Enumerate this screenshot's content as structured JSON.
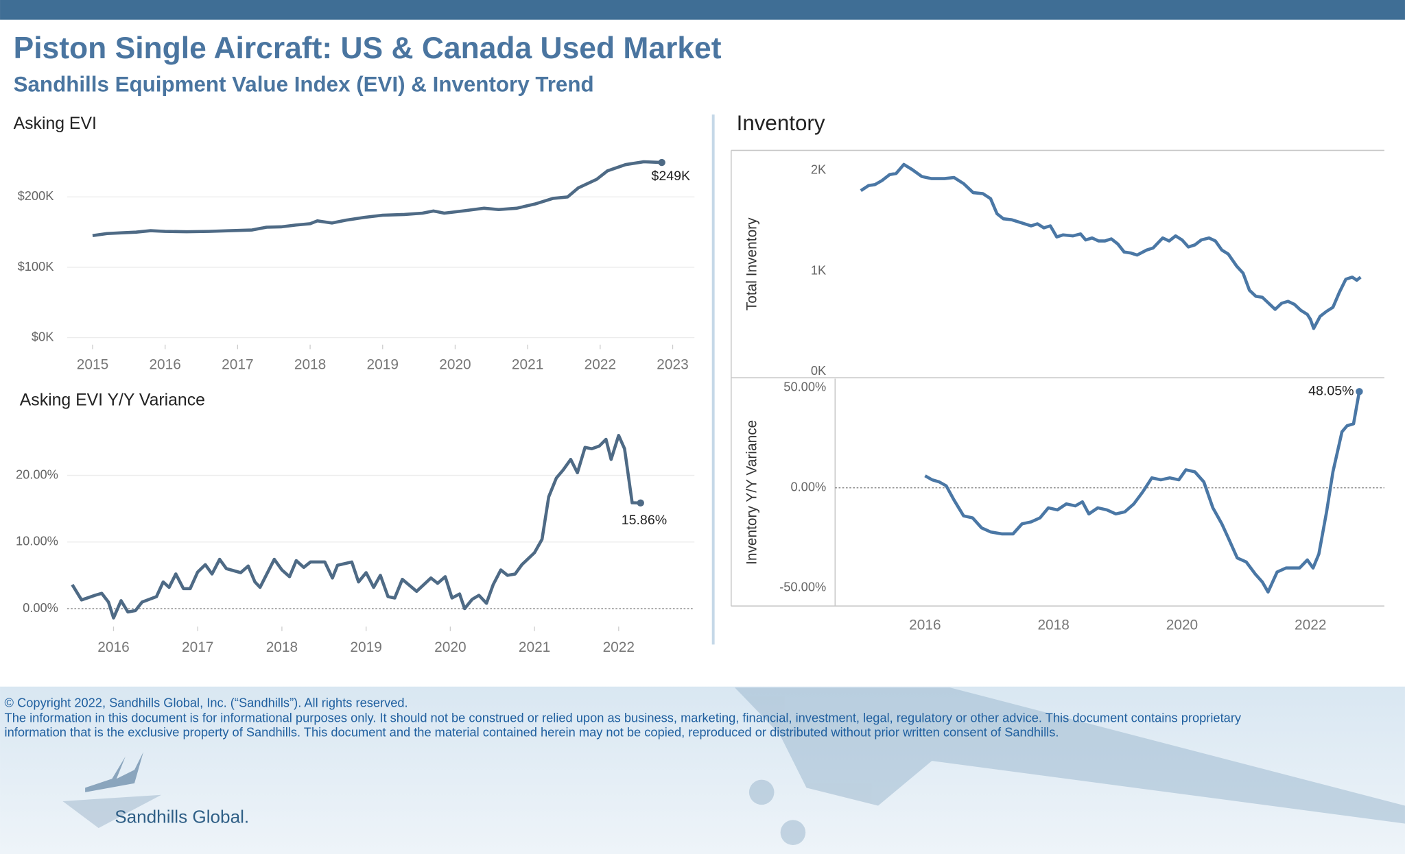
{
  "header": {
    "title": "Piston Single Aircraft:  US & Canada Used Market",
    "subtitle": "Sandhills Equipment Value Index (EVI) & Inventory Trend"
  },
  "chart_data": [
    {
      "type": "line",
      "title": "Asking EVI",
      "color": "#4e6a85",
      "grid": true,
      "zero_line": false,
      "x": [
        2015.0,
        2015.2,
        2015.4,
        2015.6,
        2015.8,
        2016.0,
        2016.3,
        2016.6,
        2016.9,
        2017.2,
        2017.4,
        2017.6,
        2017.8,
        2018.0,
        2018.1,
        2018.3,
        2018.5,
        2018.75,
        2019.0,
        2019.3,
        2019.55,
        2019.7,
        2019.85,
        2020.1,
        2020.4,
        2020.6,
        2020.85,
        2021.1,
        2021.35,
        2021.55,
        2021.7,
        2021.95,
        2022.1,
        2022.35,
        2022.6,
        2022.85
      ],
      "values": [
        145000,
        148000,
        149000,
        150000,
        152000,
        151000,
        150500,
        151000,
        152000,
        153000,
        157000,
        157500,
        160000,
        162000,
        166000,
        163000,
        167000,
        171000,
        174000,
        175000,
        177000,
        180000,
        177000,
        180000,
        184000,
        182000,
        184000,
        190000,
        198000,
        200000,
        213000,
        225000,
        237000,
        246000,
        250000,
        249000
      ],
      "value_labels": [
        null,
        null,
        null,
        null,
        null,
        null,
        null,
        null,
        null,
        null,
        null,
        null,
        null,
        null,
        null,
        null,
        null,
        null,
        null,
        null,
        null,
        null,
        null,
        null,
        null,
        null,
        null,
        null,
        null,
        null,
        null,
        null,
        null,
        null,
        null,
        "$249K"
      ],
      "xlim": [
        2014.65,
        2023.3
      ],
      "xticks": [
        2015,
        2016,
        2017,
        2018,
        2019,
        2020,
        2021,
        2022,
        2023
      ],
      "ylim": [
        -10000,
        270000
      ],
      "yticks": [
        {
          "value": 0,
          "label": "$0K"
        },
        {
          "value": 100000,
          "label": "$100K"
        },
        {
          "value": 200000,
          "label": "$200K"
        }
      ]
    },
    {
      "type": "line",
      "title": "Asking EVI Y/Y Variance",
      "color": "#4e6a85",
      "grid": true,
      "zero_line": true,
      "x": [
        2015.51,
        2015.62,
        2015.78,
        2015.86,
        2015.94,
        2016.0,
        2016.09,
        2016.17,
        2016.26,
        2016.34,
        2016.51,
        2016.59,
        2016.66,
        2016.74,
        2016.83,
        2016.91,
        2017.0,
        2017.09,
        2017.17,
        2017.26,
        2017.34,
        2017.51,
        2017.6,
        2017.68,
        2017.74,
        2017.91,
        2018.0,
        2018.09,
        2018.17,
        2018.26,
        2018.34,
        2018.51,
        2018.6,
        2018.66,
        2018.83,
        2018.91,
        2019.0,
        2019.09,
        2019.17,
        2019.26,
        2019.34,
        2019.43,
        2019.6,
        2019.77,
        2019.85,
        2019.94,
        2020.02,
        2020.11,
        2020.17,
        2020.26,
        2020.34,
        2020.43,
        2020.51,
        2020.6,
        2020.68,
        2020.77,
        2020.85,
        2021.0,
        2021.09,
        2021.17,
        2021.26,
        2021.34,
        2021.43,
        2021.51,
        2021.6,
        2021.68,
        2021.77,
        2021.85,
        2021.91,
        2022.0,
        2022.07,
        2022.16,
        2022.26
      ],
      "values": [
        3.6,
        1.3,
        2.0,
        2.3,
        1.0,
        -1.4,
        1.2,
        -0.5,
        -0.3,
        1.0,
        1.8,
        4.0,
        3.2,
        5.2,
        3.0,
        3.0,
        5.5,
        6.6,
        5.2,
        7.4,
        6.0,
        5.4,
        6.4,
        4.0,
        3.2,
        7.4,
        5.8,
        4.8,
        7.2,
        6.2,
        7.0,
        7.0,
        4.6,
        6.5,
        7.0,
        4.0,
        5.4,
        3.2,
        5.0,
        1.8,
        1.6,
        4.4,
        2.6,
        4.6,
        3.8,
        4.8,
        1.6,
        2.2,
        0.0,
        1.4,
        2.0,
        0.8,
        3.6,
        5.8,
        5.0,
        5.2,
        6.6,
        8.4,
        10.4,
        16.8,
        19.6,
        20.8,
        22.4,
        20.4,
        24.2,
        24.0,
        24.4,
        25.4,
        22.4,
        26.0,
        24.0,
        15.9,
        15.86
      ],
      "value_labels": [
        null,
        null,
        null,
        null,
        null,
        null,
        null,
        null,
        null,
        null,
        null,
        null,
        null,
        null,
        null,
        null,
        null,
        null,
        null,
        null,
        null,
        null,
        null,
        null,
        null,
        null,
        null,
        null,
        null,
        null,
        null,
        null,
        null,
        null,
        null,
        null,
        null,
        null,
        null,
        null,
        null,
        null,
        null,
        null,
        null,
        null,
        null,
        null,
        null,
        null,
        null,
        null,
        null,
        null,
        null,
        null,
        null,
        null,
        null,
        null,
        null,
        null,
        null,
        null,
        null,
        null,
        null,
        null,
        null,
        null,
        null,
        null,
        "15.86%"
      ],
      "xlim": [
        2015.45,
        2022.9
      ],
      "xticks": [
        2016,
        2017,
        2018,
        2019,
        2020,
        2021,
        2022
      ],
      "ylim": [
        -2.7,
        28.2
      ],
      "yticks": [
        {
          "value": 0,
          "label": "0.00%"
        },
        {
          "value": 10,
          "label": "10.00%"
        },
        {
          "value": 20,
          "label": "20.00%"
        }
      ]
    },
    {
      "type": "line",
      "title": "Inventory",
      "y_label": "Total Inventory",
      "color": "#4a77a5",
      "grid": false,
      "zero_line": false,
      "x": [
        2015.0,
        2015.12,
        2015.22,
        2015.33,
        2015.45,
        2015.55,
        2015.67,
        2015.8,
        2015.95,
        2016.1,
        2016.3,
        2016.45,
        2016.6,
        2016.75,
        2016.9,
        2017.02,
        2017.12,
        2017.22,
        2017.35,
        2017.5,
        2017.65,
        2017.75,
        2017.85,
        2017.95,
        2018.05,
        2018.15,
        2018.3,
        2018.42,
        2018.5,
        2018.6,
        2018.7,
        2018.8,
        2018.9,
        2019.0,
        2019.1,
        2019.2,
        2019.3,
        2019.45,
        2019.55,
        2019.7,
        2019.8,
        2019.9,
        2020.0,
        2020.1,
        2020.2,
        2020.3,
        2020.42,
        2020.52,
        2020.62,
        2020.72,
        2020.85,
        2020.95,
        2021.05,
        2021.15,
        2021.25,
        2021.35,
        2021.45,
        2021.55,
        2021.65,
        2021.75,
        2021.85,
        2021.95,
        2022.0,
        2022.05,
        2022.15,
        2022.25,
        2022.35,
        2022.45,
        2022.55,
        2022.65,
        2022.72,
        2022.78
      ],
      "values": [
        1800,
        1850,
        1860,
        1900,
        1960,
        1970,
        2060,
        2010,
        1940,
        1920,
        1920,
        1930,
        1870,
        1780,
        1770,
        1720,
        1570,
        1520,
        1510,
        1480,
        1450,
        1470,
        1430,
        1450,
        1340,
        1360,
        1350,
        1370,
        1310,
        1330,
        1300,
        1300,
        1320,
        1270,
        1190,
        1180,
        1160,
        1210,
        1230,
        1330,
        1300,
        1350,
        1310,
        1240,
        1260,
        1310,
        1330,
        1300,
        1210,
        1170,
        1050,
        980,
        810,
        750,
        740,
        680,
        620,
        680,
        700,
        670,
        610,
        570,
        520,
        430,
        550,
        600,
        640,
        790,
        920,
        940,
        910,
        940
      ],
      "xlim": [
        2014.6,
        2023.15
      ],
      "ylim": [
        -60,
        2200
      ],
      "yticks": [
        {
          "value": 0,
          "label": "0K"
        },
        {
          "value": 1000,
          "label": "1K"
        },
        {
          "value": 2000,
          "label": "2K"
        }
      ]
    },
    {
      "type": "line",
      "y_label": "Inventory  Y/Y Variance",
      "color": "#4a77a5",
      "grid": false,
      "zero_line": true,
      "x": [
        2016.0,
        2016.11,
        2016.22,
        2016.33,
        2016.45,
        2016.6,
        2016.74,
        2016.88,
        2017.02,
        2017.2,
        2017.37,
        2017.51,
        2017.65,
        2017.79,
        2017.92,
        2018.06,
        2018.2,
        2018.34,
        2018.45,
        2018.55,
        2018.69,
        2018.83,
        2018.97,
        2019.11,
        2019.25,
        2019.39,
        2019.53,
        2019.67,
        2019.81,
        2019.95,
        2020.06,
        2020.2,
        2020.34,
        2020.48,
        2020.62,
        2020.72,
        2020.86,
        2021.0,
        2021.14,
        2021.25,
        2021.34,
        2021.48,
        2021.62,
        2021.83,
        2021.95,
        2022.04,
        2022.13,
        2022.25,
        2022.35,
        2022.49,
        2022.57,
        2022.67,
        2022.76
      ],
      "values": [
        6,
        4,
        3,
        1,
        -6,
        -14,
        -15,
        -20,
        -22,
        -23,
        -23,
        -18,
        -17,
        -15,
        -10,
        -11,
        -8,
        -9,
        -7,
        -13,
        -10,
        -11,
        -13,
        -12,
        -8,
        -2,
        5,
        4,
        5,
        4,
        9,
        8,
        3,
        -10,
        -18,
        -25,
        -35,
        -37,
        -43,
        -47,
        -52,
        -42,
        -40,
        -40,
        -36,
        -40,
        -33,
        -12,
        8,
        28,
        31,
        32,
        48.05
      ],
      "value_labels": [
        null,
        null,
        null,
        null,
        null,
        null,
        null,
        null,
        null,
        null,
        null,
        null,
        null,
        null,
        null,
        null,
        null,
        null,
        null,
        null,
        null,
        null,
        null,
        null,
        null,
        null,
        null,
        null,
        null,
        null,
        null,
        null,
        null,
        null,
        null,
        null,
        null,
        null,
        null,
        null,
        null,
        null,
        null,
        null,
        null,
        null,
        null,
        null,
        null,
        null,
        null,
        null,
        "48.05%"
      ],
      "xlim": [
        2014.6,
        2023.15
      ],
      "xticks": [
        2016,
        2018,
        2020,
        2022
      ],
      "ylim": [
        -59,
        54.5
      ],
      "yticks": [
        {
          "value": -50,
          "label": "-50.00%"
        },
        {
          "value": 0,
          "label": "0.00%"
        },
        {
          "value": 50,
          "label": "50.00%"
        }
      ]
    }
  ],
  "footer": {
    "copyright": "© Copyright 2022, Sandhills Global, Inc. (“Sandhills”). All rights reserved.",
    "disclaimer": [
      "The information in this document is for informational purposes only.  It should not be construed or relied upon as business, marketing, financial, investment, legal, regulatory or other advice. This document contains proprietary",
      "information that is the exclusive property of Sandhills. This document and the material contained herein may not be copied, reproduced or distributed without prior written consent of Sandhills."
    ],
    "logo": "Sandhills Global."
  }
}
